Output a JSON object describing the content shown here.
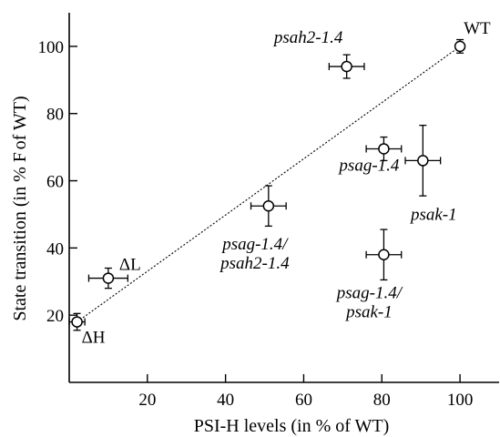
{
  "chart_data": {
    "type": "scatter",
    "xlabel": "PSI-H levels (in % of WT)",
    "ylabel_parts": [
      "State transition (in % F",
      "of WT)"
    ],
    "xlim": [
      0,
      110
    ],
    "ylim": [
      0,
      110
    ],
    "xticks": [
      20,
      40,
      60,
      80,
      100
    ],
    "yticks": [
      20,
      40,
      60,
      80,
      100
    ],
    "grid": false,
    "fit_line": {
      "style": "dotted",
      "from": [
        2,
        18
      ],
      "to": [
        100,
        100
      ]
    },
    "points": [
      {
        "label": "WT",
        "x": 100,
        "y": 100,
        "xerr": 0,
        "yerr": 2,
        "italic": false
      },
      {
        "label": "psah2-1.4",
        "x": 71,
        "y": 94,
        "xerr": 4.5,
        "yerr": 3.5,
        "italic": true
      },
      {
        "label": "psag-1.4",
        "x": 80.5,
        "y": 69.5,
        "xerr": 4.5,
        "yerr": 3.5,
        "italic": true
      },
      {
        "label": "psak-1",
        "x": 90.5,
        "y": 66,
        "xerr": 4.5,
        "yerr": 10.5,
        "italic": true
      },
      {
        "label": "psag-1.4/ psah2-1.4",
        "label_lines": [
          "psag-1.4/",
          "psah2-1.4"
        ],
        "x": 51,
        "y": 52.5,
        "xerr": 4.5,
        "yerr": 6,
        "italic": true
      },
      {
        "label": "psag-1.4/ psak-1",
        "label_lines": [
          "psag-1.4/",
          "psak-1"
        ],
        "x": 80.5,
        "y": 38,
        "xerr": 4.5,
        "yerr": 7.5,
        "italic": true
      },
      {
        "label": "ΔL",
        "x": 10,
        "y": 31,
        "xerr": 5,
        "yerr": 3,
        "italic": false
      },
      {
        "label": "ΔH",
        "x": 2,
        "y": 18,
        "xerr": 2,
        "yerr": 2.5,
        "italic": false
      }
    ]
  }
}
